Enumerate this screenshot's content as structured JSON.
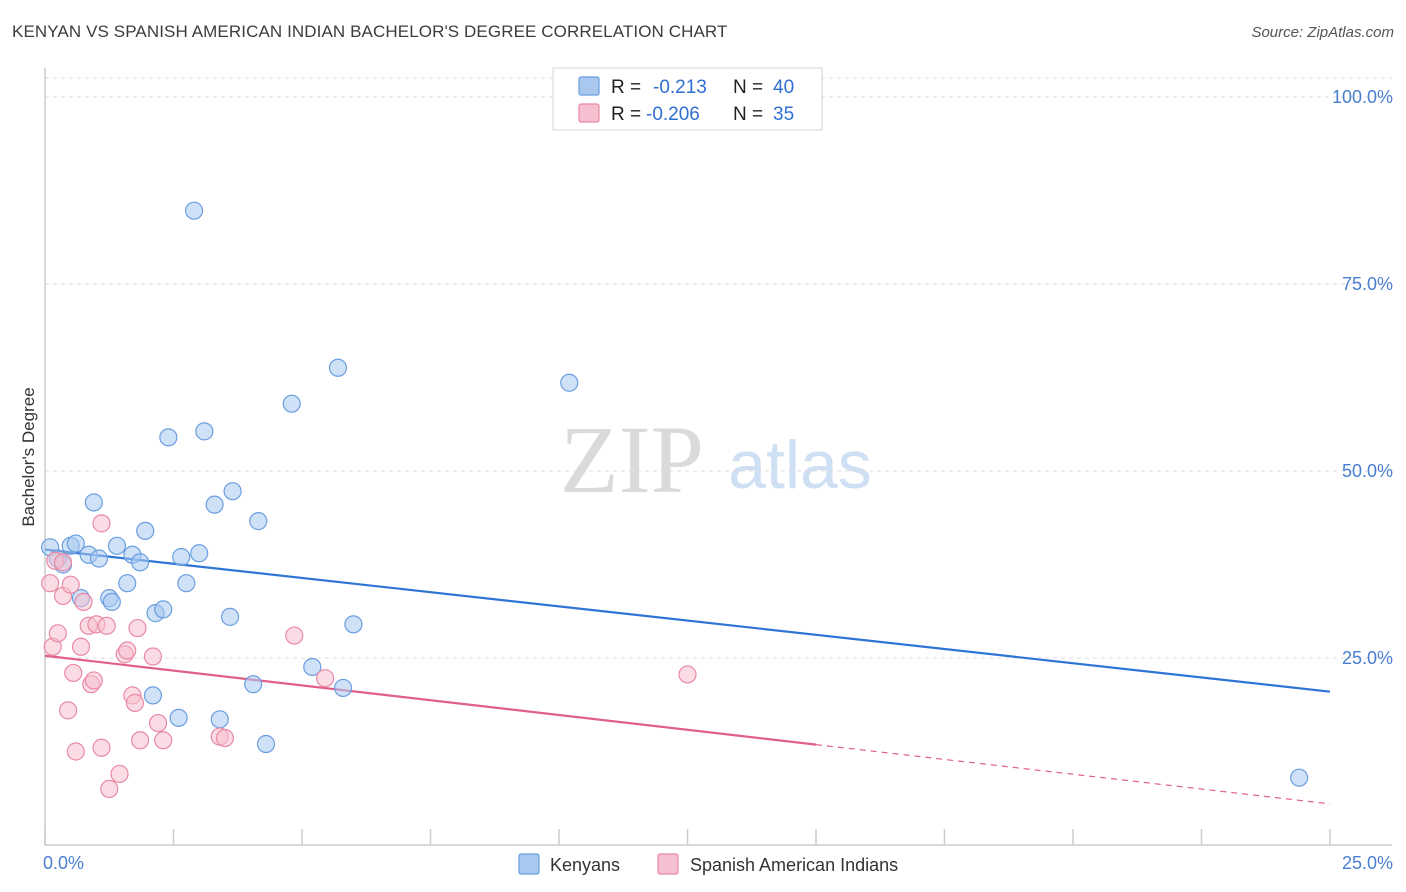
{
  "header": {
    "title": "KENYAN VS SPANISH AMERICAN INDIAN BACHELOR'S DEGREE CORRELATION CHART",
    "source": "Source: ZipAtlas.com"
  },
  "watermark": {
    "zip": "ZIP",
    "atlas": "atlas"
  },
  "legend_box": {
    "rows": [
      {
        "r_label": "R =",
        "r_value": "-0.213",
        "n_label": "N =",
        "n_value": "40",
        "color": "#a8c8f0",
        "stroke": "#6a9ee0"
      },
      {
        "r_label": "R =",
        "r_value": "-0.206",
        "n_label": "N =",
        "n_value": "35",
        "color": "#f7c0d0",
        "stroke": "#e88aa6"
      }
    ]
  },
  "bottom_legend": [
    {
      "label": "Kenyans",
      "color": "#a8c8f0",
      "stroke": "#6a9ee0"
    },
    {
      "label": "Spanish American Indians",
      "color": "#f7c0d0",
      "stroke": "#e88aa6"
    }
  ],
  "chart_data": {
    "type": "scatter",
    "title": "KENYAN VS SPANISH AMERICAN INDIAN BACHELOR'S DEGREE CORRELATION CHART",
    "xlabel": "",
    "ylabel": "Bachelor's Degree",
    "xlim": [
      0,
      25
    ],
    "ylim": [
      0,
      100
    ],
    "x_tick_labels": [
      "0.0%",
      "25.0%"
    ],
    "y_tick_labels": [
      "100.0%",
      "75.0%",
      "50.0%",
      "25.0%"
    ],
    "y_ticks": [
      100,
      75,
      50,
      25
    ],
    "grid": true,
    "series": [
      {
        "name": "Kenyans",
        "color": "#a8c8f0",
        "stroke": "#6a9ee0",
        "line_color": "#2f74d4",
        "trend": {
          "x0": 0,
          "y0": 39.5,
          "x1": 25,
          "y1": 20.5,
          "solid_to": 25
        },
        "points": [
          [
            0.1,
            39.8
          ],
          [
            0.25,
            38.3
          ],
          [
            0.35,
            37.5
          ],
          [
            0.5,
            40.0
          ],
          [
            0.6,
            40.3
          ],
          [
            0.7,
            33.0
          ],
          [
            0.85,
            38.8
          ],
          [
            0.95,
            45.8
          ],
          [
            1.05,
            38.3
          ],
          [
            1.25,
            33.0
          ],
          [
            1.3,
            32.5
          ],
          [
            1.4,
            40.0
          ],
          [
            1.6,
            35.0
          ],
          [
            1.7,
            38.8
          ],
          [
            1.85,
            37.8
          ],
          [
            1.95,
            42.0
          ],
          [
            2.1,
            20.0
          ],
          [
            2.15,
            31.0
          ],
          [
            2.3,
            31.5
          ],
          [
            2.4,
            54.5
          ],
          [
            2.6,
            17.0
          ],
          [
            2.65,
            38.5
          ],
          [
            2.75,
            35.0
          ],
          [
            2.9,
            84.8
          ],
          [
            3.0,
            39.0
          ],
          [
            3.1,
            55.3
          ],
          [
            3.3,
            45.5
          ],
          [
            3.4,
            16.8
          ],
          [
            3.6,
            30.5
          ],
          [
            3.65,
            47.3
          ],
          [
            4.05,
            21.5
          ],
          [
            4.15,
            43.3
          ],
          [
            4.3,
            13.5
          ],
          [
            4.8,
            59.0
          ],
          [
            5.2,
            23.8
          ],
          [
            5.7,
            63.8
          ],
          [
            5.8,
            21.0
          ],
          [
            6.0,
            29.5
          ],
          [
            10.2,
            61.8
          ],
          [
            24.4,
            9.0
          ]
        ]
      },
      {
        "name": "Spanish American Indians",
        "color": "#f7c0d0",
        "stroke": "#e88aa6",
        "line_color": "#e0608a",
        "trend": {
          "x0": 0,
          "y0": 25.3,
          "x1": 25,
          "y1": 5.5,
          "solid_to": 15
        },
        "points": [
          [
            0.1,
            35.0
          ],
          [
            0.15,
            26.5
          ],
          [
            0.2,
            38.0
          ],
          [
            0.25,
            28.3
          ],
          [
            0.35,
            37.8
          ],
          [
            0.35,
            33.3
          ],
          [
            0.45,
            18.0
          ],
          [
            0.5,
            34.8
          ],
          [
            0.55,
            23.0
          ],
          [
            0.6,
            12.5
          ],
          [
            0.7,
            26.5
          ],
          [
            0.75,
            32.5
          ],
          [
            0.85,
            29.3
          ],
          [
            0.9,
            21.5
          ],
          [
            0.95,
            22.0
          ],
          [
            1.0,
            29.5
          ],
          [
            1.1,
            43.0
          ],
          [
            1.1,
            13.0
          ],
          [
            1.2,
            29.3
          ],
          [
            1.25,
            7.5
          ],
          [
            1.45,
            9.5
          ],
          [
            1.55,
            25.5
          ],
          [
            1.6,
            26.0
          ],
          [
            1.7,
            20.0
          ],
          [
            1.75,
            19.0
          ],
          [
            1.8,
            29.0
          ],
          [
            1.85,
            14.0
          ],
          [
            2.1,
            25.2
          ],
          [
            2.2,
            16.3
          ],
          [
            2.3,
            14.0
          ],
          [
            3.4,
            14.5
          ],
          [
            3.5,
            14.3
          ],
          [
            4.85,
            28.0
          ],
          [
            5.45,
            22.3
          ],
          [
            12.5,
            22.8
          ]
        ]
      }
    ]
  }
}
